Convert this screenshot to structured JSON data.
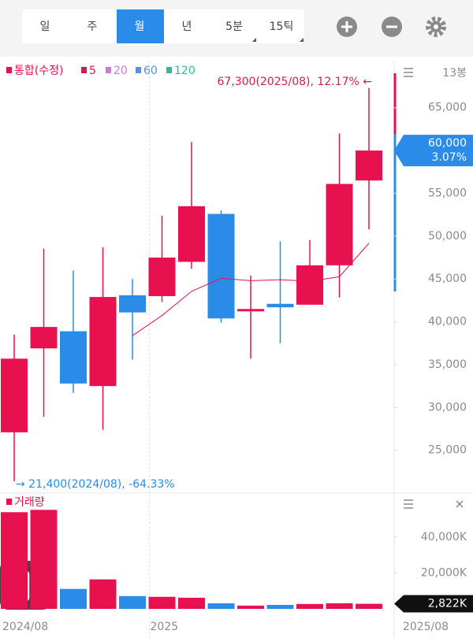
{
  "toolbar": {
    "tabs": [
      "일",
      "주",
      "월",
      "년",
      "5분",
      "15틱"
    ],
    "active": 2
  },
  "chart_data": [
    {
      "type": "candlestick",
      "x": [
        "2024/08",
        null,
        null,
        null,
        null,
        "2025",
        null,
        null,
        null,
        null,
        null,
        null,
        "2025/08"
      ],
      "series": [
        {
          "name": "통합(수정)",
          "color": "#e8114f",
          "down_color": "#2b8be8",
          "open": [
            27100,
            36900,
            38900,
            32500,
            43100,
            43000,
            47000,
            52600,
            41400,
            42100,
            42000,
            46600,
            56500
          ],
          "high": [
            38500,
            48550,
            46000,
            48700,
            45000,
            52400,
            61000,
            53000,
            45400,
            49400,
            49550,
            62000,
            67300
          ],
          "low": [
            21400,
            28900,
            31700,
            27400,
            35600,
            42300,
            46200,
            39900,
            35700,
            37500,
            42000,
            42850,
            50800
          ],
          "close": [
            35700,
            39400,
            32800,
            42900,
            41100,
            47500,
            53500,
            40400,
            41500,
            41700,
            46600,
            56100,
            60000
          ]
        }
      ],
      "ma_series": [
        {
          "name": "5",
          "color": "#e8114f",
          "values": [
            null,
            null,
            null,
            null,
            38380,
            40740,
            43560,
            45080,
            44800,
            44920,
            44740,
            45260,
            49180
          ]
        },
        {
          "name": "20",
          "color": "#c77dd6",
          "values": [
            null,
            null,
            null,
            null,
            null,
            null,
            null,
            null,
            null,
            null,
            null,
            null,
            null
          ]
        },
        {
          "name": "60",
          "color": "#5b8fe0",
          "values": [
            null,
            null,
            null,
            null,
            null,
            null,
            null,
            null,
            null,
            null,
            null,
            null,
            null
          ]
        },
        {
          "name": "120",
          "color": "#35b5a0",
          "values": [
            null,
            null,
            null,
            null,
            null,
            null,
            null,
            null,
            null,
            null,
            null,
            null,
            null
          ]
        }
      ],
      "ylim": [
        20100,
        70400
      ],
      "yticks": [
        {
          "value": 25000,
          "label": "25,000"
        },
        {
          "value": 30000,
          "label": "30,000"
        },
        {
          "value": 35000,
          "label": "35,000"
        },
        {
          "value": 40000,
          "label": "40,000"
        },
        {
          "value": 45000,
          "label": "45,000"
        },
        {
          "value": 50000,
          "label": "50,000"
        },
        {
          "value": 55000,
          "label": "55,000"
        },
        {
          "value": 60000,
          "label": "60,000"
        },
        {
          "value": 65000,
          "label": "65,000"
        }
      ],
      "bar_count_label": "13봉",
      "max_label": "67,300(2025/08), 12.17% ←",
      "min_label": "→ 21,400(2024/08), -64.33%",
      "last_price": {
        "value": 60000,
        "label": "60,000",
        "change": "3.07%"
      }
    },
    {
      "type": "bar",
      "title": "거래량",
      "color": "#e8114f",
      "values": [
        53800,
        55100,
        11100,
        16400,
        7100,
        6700,
        6200,
        3100,
        1800,
        2200,
        2700,
        3100,
        2822
      ],
      "ylim": [
        0,
        64000
      ],
      "yticks": [
        {
          "value": 20000,
          "label": "20,000K"
        },
        {
          "value": 40000,
          "label": "40,000K"
        }
      ],
      "last_value": {
        "value": 2822,
        "label": "2,822K"
      }
    }
  ]
}
